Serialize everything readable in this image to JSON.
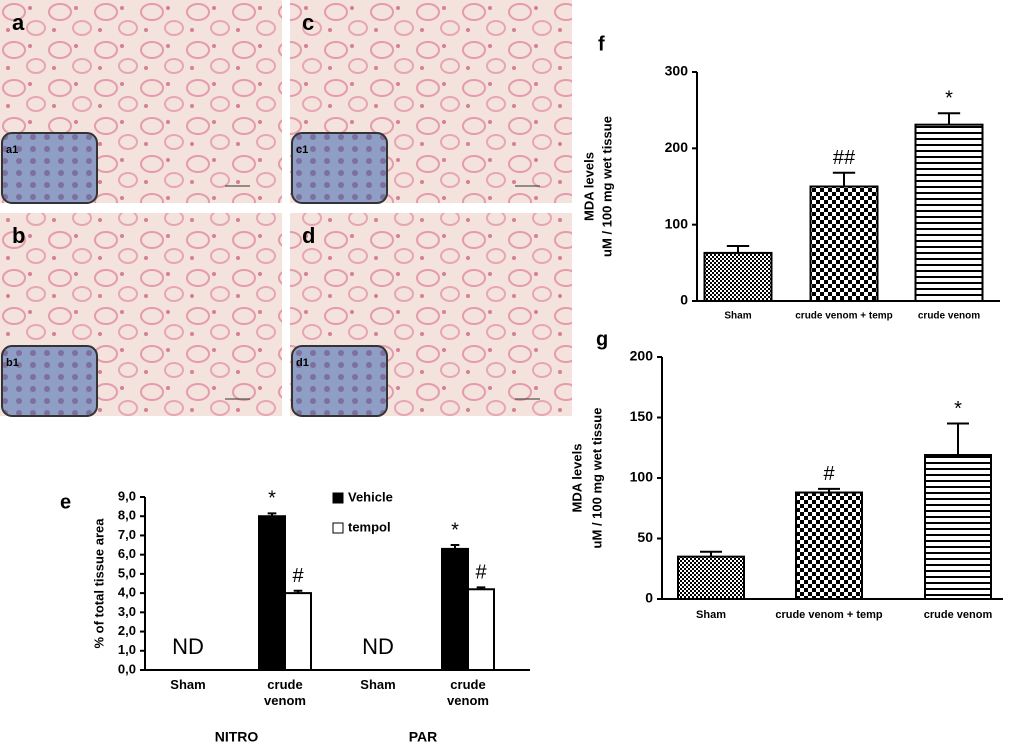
{
  "micrographs": [
    {
      "label": "a",
      "inset": "a1"
    },
    {
      "label": "c",
      "inset": "c1"
    },
    {
      "label": "b",
      "inset": "b1"
    },
    {
      "label": "d",
      "inset": "d1"
    }
  ],
  "chart_data": [
    {
      "type": "bar",
      "panel": "e",
      "ylabel": "% of total tissue area",
      "categories": [
        "Sham",
        "crude venom",
        "Sham",
        "crude venom"
      ],
      "groups": [
        "NITRO",
        "PAR"
      ],
      "category_notes": [
        "ND",
        null,
        "ND",
        null
      ],
      "series": [
        {
          "name": "Vehicle",
          "color": "#000000",
          "values": [
            null,
            8.0,
            null,
            6.3
          ],
          "errors": [
            null,
            0.15,
            null,
            0.2
          ],
          "annotations": [
            null,
            "*",
            null,
            "*"
          ]
        },
        {
          "name": "tempol",
          "color": "#ffffff",
          "values": [
            null,
            4.0,
            null,
            4.2
          ],
          "errors": [
            null,
            0.12,
            null,
            0.1
          ],
          "annotations": [
            null,
            "#",
            null,
            "#"
          ]
        }
      ],
      "ylim": [
        0,
        9
      ],
      "yticks": [
        {
          "value": 0,
          "label": "0,0"
        },
        {
          "value": 1,
          "label": "1,0"
        },
        {
          "value": 2,
          "label": "2,0"
        },
        {
          "value": 3,
          "label": "3,0"
        },
        {
          "value": 4,
          "label": "4,0"
        },
        {
          "value": 5,
          "label": "5,0"
        },
        {
          "value": 6,
          "label": "6,0"
        },
        {
          "value": 7,
          "label": "7,0"
        },
        {
          "value": 8,
          "label": "8,0"
        },
        {
          "value": 9,
          "label": "9,0"
        }
      ]
    },
    {
      "type": "bar",
      "panel": "f",
      "ylabel": [
        "MDA levels",
        "uM / 100 mg wet tissue"
      ],
      "categories": [
        "Sham",
        "crude venom + temp",
        "crude venom"
      ],
      "values": [
        63,
        150,
        231
      ],
      "errors": [
        9,
        18,
        15
      ],
      "annotations": [
        null,
        "##",
        "*"
      ],
      "color": "#000000",
      "patterns": [
        "checker-fine",
        "checker",
        "hlines"
      ],
      "ylim": [
        0,
        300
      ],
      "yticks": [
        0,
        100,
        200,
        300
      ]
    },
    {
      "type": "bar",
      "panel": "g",
      "ylabel": [
        "MDA levels",
        "uM / 100 mg wet tissue"
      ],
      "categories": [
        "Sham",
        "crude venom + temp",
        "crude venom"
      ],
      "values": [
        35,
        88,
        119
      ],
      "errors": [
        4,
        3,
        26
      ],
      "annotations": [
        null,
        "#",
        "*"
      ],
      "color": "#000000",
      "patterns": [
        "checker-fine",
        "checker",
        "hlines"
      ],
      "ylim": [
        0,
        200
      ],
      "yticks": [
        0,
        50,
        100,
        150,
        200
      ]
    }
  ]
}
